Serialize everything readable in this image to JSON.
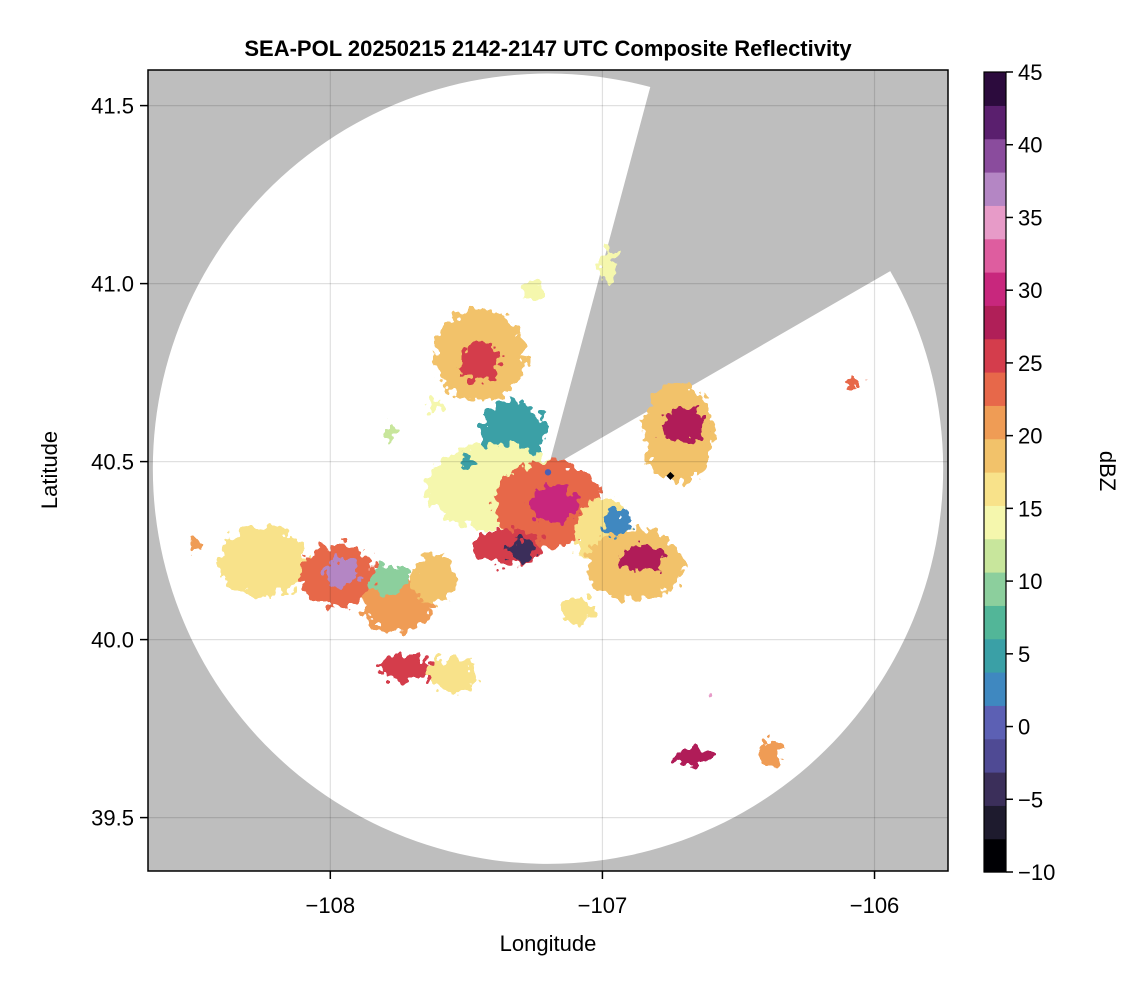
{
  "chart_data": {
    "type": "heatmap",
    "title": "SEA-POL 20250215 2142-2147 UTC Composite Reflectivity",
    "xlabel": "Longitude",
    "ylabel": "Latitude",
    "xlim": [
      -108.67,
      -105.73
    ],
    "ylim": [
      39.35,
      41.6
    ],
    "xticks": [
      -108,
      -107,
      -106
    ],
    "xtick_labels": [
      "−108",
      "−107",
      "−106"
    ],
    "yticks": [
      39.5,
      40.0,
      40.5,
      41.0,
      41.5
    ],
    "ytick_labels": [
      "39.5",
      "40.0",
      "40.5",
      "41.0",
      "41.5"
    ],
    "grid": true,
    "colorbar": {
      "label": "dBZ",
      "range": [
        -10,
        45
      ],
      "ticks": [
        -10,
        -5,
        0,
        5,
        10,
        15,
        20,
        25,
        30,
        35,
        40,
        45
      ],
      "tick_labels": [
        "−10",
        "−5",
        "0",
        "5",
        "10",
        "15",
        "20",
        "25",
        "30",
        "35",
        "40",
        "45"
      ],
      "colormap": [
        "#000004",
        "#1e1b2e",
        "#3b2f5a",
        "#4f4a94",
        "#5c60b4",
        "#3f88c0",
        "#3aa0a6",
        "#52b698",
        "#8ccf9d",
        "#c8e69c",
        "#f5f7ad",
        "#f8e28a",
        "#f2c26a",
        "#ef9c55",
        "#e7684a",
        "#d43d4c",
        "#b01f58",
        "#c8277d",
        "#de5d9f",
        "#e79bc8",
        "#b486c4",
        "#8a4c9d",
        "#5a1f6e",
        "#2c0b3d"
      ]
    },
    "radar": {
      "center_lon": -107.2,
      "center_lat": 40.48,
      "range_deg_lat": 1.11,
      "blocked_sector_deg": [
        15,
        60
      ]
    },
    "site_markers": [
      {
        "name": "radar-site",
        "lon": -107.2,
        "lat": 40.47,
        "color": "#4a5fb4"
      },
      {
        "name": "station-site",
        "lon": -106.75,
        "lat": 40.46,
        "color": "#000000"
      }
    ],
    "echo_regions": [
      {
        "lon": -107.45,
        "lat": 40.8,
        "rlon": 0.17,
        "rlat": 0.13,
        "dbz": 18
      },
      {
        "lon": -107.45,
        "lat": 40.78,
        "rlon": 0.07,
        "rlat": 0.06,
        "dbz": 25
      },
      {
        "lon": -107.33,
        "lat": 40.58,
        "rlon": 0.12,
        "rlat": 0.09,
        "dbz": 4
      },
      {
        "lon": -107.4,
        "lat": 40.43,
        "rlon": 0.25,
        "rlat": 0.12,
        "dbz": 14
      },
      {
        "lon": -107.2,
        "lat": 40.38,
        "rlon": 0.2,
        "rlat": 0.12,
        "dbz": 24
      },
      {
        "lon": -107.18,
        "lat": 40.38,
        "rlon": 0.09,
        "rlat": 0.05,
        "dbz": 30
      },
      {
        "lon": -107.0,
        "lat": 40.3,
        "rlon": 0.1,
        "rlat": 0.1,
        "dbz": 16
      },
      {
        "lon": -107.35,
        "lat": 40.26,
        "rlon": 0.13,
        "rlat": 0.05,
        "dbz": 26
      },
      {
        "lon": -107.3,
        "lat": 40.25,
        "rlon": 0.05,
        "rlat": 0.03,
        "dbz": -4
      },
      {
        "lon": -106.88,
        "lat": 40.21,
        "rlon": 0.18,
        "rlat": 0.1,
        "dbz": 19
      },
      {
        "lon": -106.85,
        "lat": 40.23,
        "rlon": 0.08,
        "rlat": 0.04,
        "dbz": 28
      },
      {
        "lon": -106.95,
        "lat": 40.33,
        "rlon": 0.05,
        "rlat": 0.04,
        "dbz": 2
      },
      {
        "lon": -106.72,
        "lat": 40.58,
        "rlon": 0.13,
        "rlat": 0.14,
        "dbz": 18
      },
      {
        "lon": -106.7,
        "lat": 40.6,
        "rlon": 0.08,
        "rlat": 0.05,
        "dbz": 27
      },
      {
        "lon": -108.25,
        "lat": 40.22,
        "rlon": 0.16,
        "rlat": 0.1,
        "dbz": 17
      },
      {
        "lon": -107.97,
        "lat": 40.18,
        "rlon": 0.14,
        "rlat": 0.09,
        "dbz": 24
      },
      {
        "lon": -107.96,
        "lat": 40.19,
        "rlon": 0.06,
        "rlat": 0.04,
        "dbz": 36
      },
      {
        "lon": -107.75,
        "lat": 40.1,
        "rlon": 0.13,
        "rlat": 0.08,
        "dbz": 20
      },
      {
        "lon": -107.78,
        "lat": 40.17,
        "rlon": 0.07,
        "rlat": 0.04,
        "dbz": 9
      },
      {
        "lon": -107.62,
        "lat": 40.17,
        "rlon": 0.08,
        "rlat": 0.07,
        "dbz": 18
      },
      {
        "lon": -107.72,
        "lat": 39.92,
        "rlon": 0.1,
        "rlat": 0.04,
        "dbz": 26
      },
      {
        "lon": -107.55,
        "lat": 39.9,
        "rlon": 0.09,
        "rlat": 0.05,
        "dbz": 17
      },
      {
        "lon": -107.09,
        "lat": 40.08,
        "rlon": 0.06,
        "rlat": 0.04,
        "dbz": 16
      },
      {
        "lon": -106.67,
        "lat": 39.67,
        "rlon": 0.07,
        "rlat": 0.025,
        "dbz": 28
      },
      {
        "lon": -106.38,
        "lat": 39.68,
        "rlon": 0.04,
        "rlat": 0.04,
        "dbz": 20
      },
      {
        "lon": -106.08,
        "lat": 40.72,
        "rlon": 0.03,
        "rlat": 0.015,
        "dbz": 24
      },
      {
        "lon": -106.6,
        "lat": 39.85,
        "rlon": 0.008,
        "rlat": 0.008,
        "dbz": 34
      },
      {
        "lon": -107.5,
        "lat": 40.5,
        "rlon": 0.02,
        "rlat": 0.02,
        "dbz": 6
      },
      {
        "lon": -107.78,
        "lat": 40.58,
        "rlon": 0.02,
        "rlat": 0.025,
        "dbz": 12
      },
      {
        "lon": -108.5,
        "lat": 40.26,
        "rlon": 0.02,
        "rlat": 0.02,
        "dbz": 22
      },
      {
        "lon": -106.98,
        "lat": 41.05,
        "rlon": 0.03,
        "rlat": 0.05,
        "dbz": 14
      },
      {
        "lon": -107.25,
        "lat": 40.98,
        "rlon": 0.04,
        "rlat": 0.03,
        "dbz": 13
      },
      {
        "lon": -107.62,
        "lat": 40.66,
        "rlon": 0.03,
        "rlat": 0.02,
        "dbz": 13
      }
    ]
  }
}
